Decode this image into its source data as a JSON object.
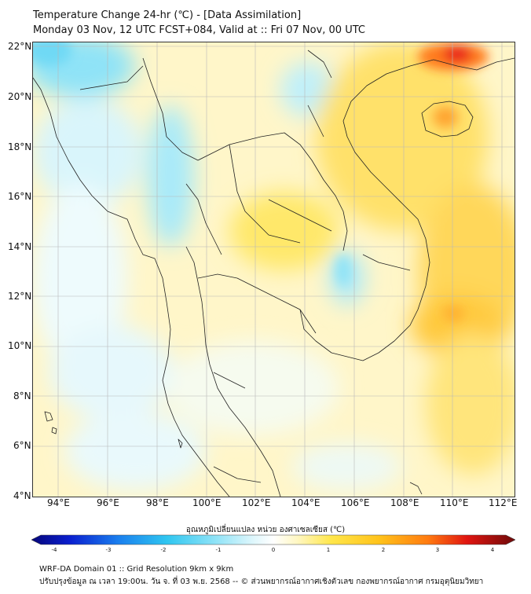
{
  "title": {
    "line1": "Temperature Change 24-hr (℃) - [Data Assimilation]",
    "line2": "Monday 03 Nov, 12 UTC FCST+084, Valid at :: Fri 07 Nov, 00 UTC"
  },
  "map": {
    "lat_labels": [
      "22°N",
      "20°N",
      "18°N",
      "16°N",
      "14°N",
      "12°N",
      "10°N",
      "8°N",
      "6°N",
      "4°N"
    ],
    "lon_labels": [
      "94°E",
      "96°E",
      "98°E",
      "100°E",
      "102°E",
      "104°E",
      "106°E",
      "108°E",
      "110°E",
      "112°E"
    ],
    "lat_range": [
      4,
      22
    ],
    "lon_range": [
      93,
      112.6
    ]
  },
  "colorbar": {
    "title": "อุณหภูมิเปลี่ยนแปลง หน่วย องศาเซลเซียส (℃)",
    "ticks": [
      "-4",
      "-3",
      "-2",
      "-1",
      "0",
      "1",
      "2",
      "3",
      "4"
    ],
    "range": [
      -4,
      4
    ]
  },
  "footer": {
    "line1": "WRF-DA Domain 01 :: Grid Resolution 9km x 9km",
    "line2": "ปรับปรุงข้อมูล ณ เวลา 19:00น. วัน จ. ที่ 03 พ.ย. 2568 -- © ส่วนพยากรณ์อากาศเชิงตัวเลข กองพยากรณ์อากาศ กรมอุตุนิยมวิทยา"
  }
}
